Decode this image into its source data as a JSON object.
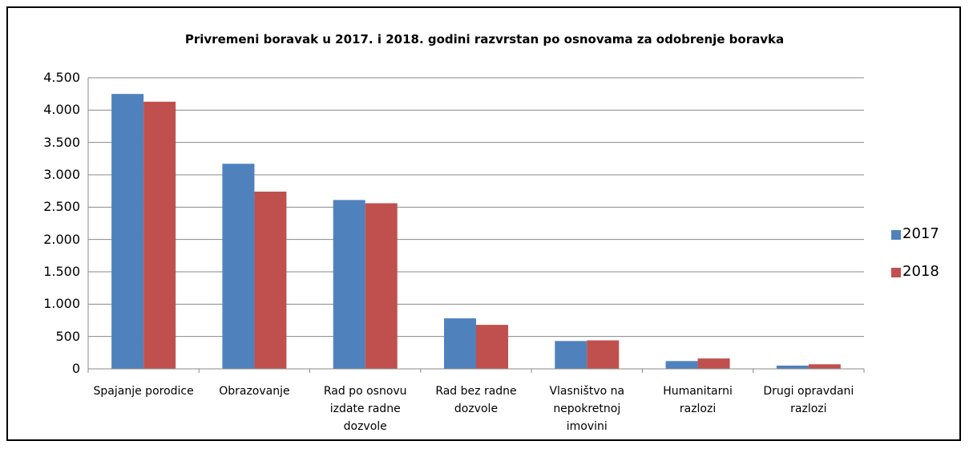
{
  "chart_data": {
    "type": "bar",
    "title": "Privremeni boravak u 2017. i 2018. godini razvrstan po osnovama za odobrenje boravka",
    "categories": [
      "Spajanje porodice",
      "Obrazovanje",
      "Rad po osnovu izdate radne dozvole",
      "Rad bez radne dozvole",
      "Vlasništvo na nepokretnoj imovini",
      "Humanitarni razlozi",
      "Drugi opravdani razlozi"
    ],
    "series": [
      {
        "name": "2017",
        "color": "#4f81bd",
        "values": [
          4250,
          3170,
          2610,
          780,
          430,
          120,
          50
        ]
      },
      {
        "name": "2018",
        "color": "#c0504d",
        "values": [
          4130,
          2740,
          2560,
          680,
          440,
          160,
          70
        ]
      }
    ],
    "ylim": [
      0,
      4500
    ],
    "yticks": [
      0,
      500,
      {
        "value": 1000,
        "label": "1.000"
      },
      {
        "value": 1500,
        "label": "1.500"
      },
      {
        "value": 2000,
        "label": "2.000"
      },
      {
        "value": 2500,
        "label": "2.500"
      },
      {
        "value": 3000,
        "label": "3.000"
      },
      {
        "value": 3500,
        "label": "3.500"
      },
      {
        "value": 4000,
        "label": "4.000"
      },
      {
        "value": 4500,
        "label": "4.500"
      }
    ],
    "grid": true,
    "legend": "right"
  }
}
